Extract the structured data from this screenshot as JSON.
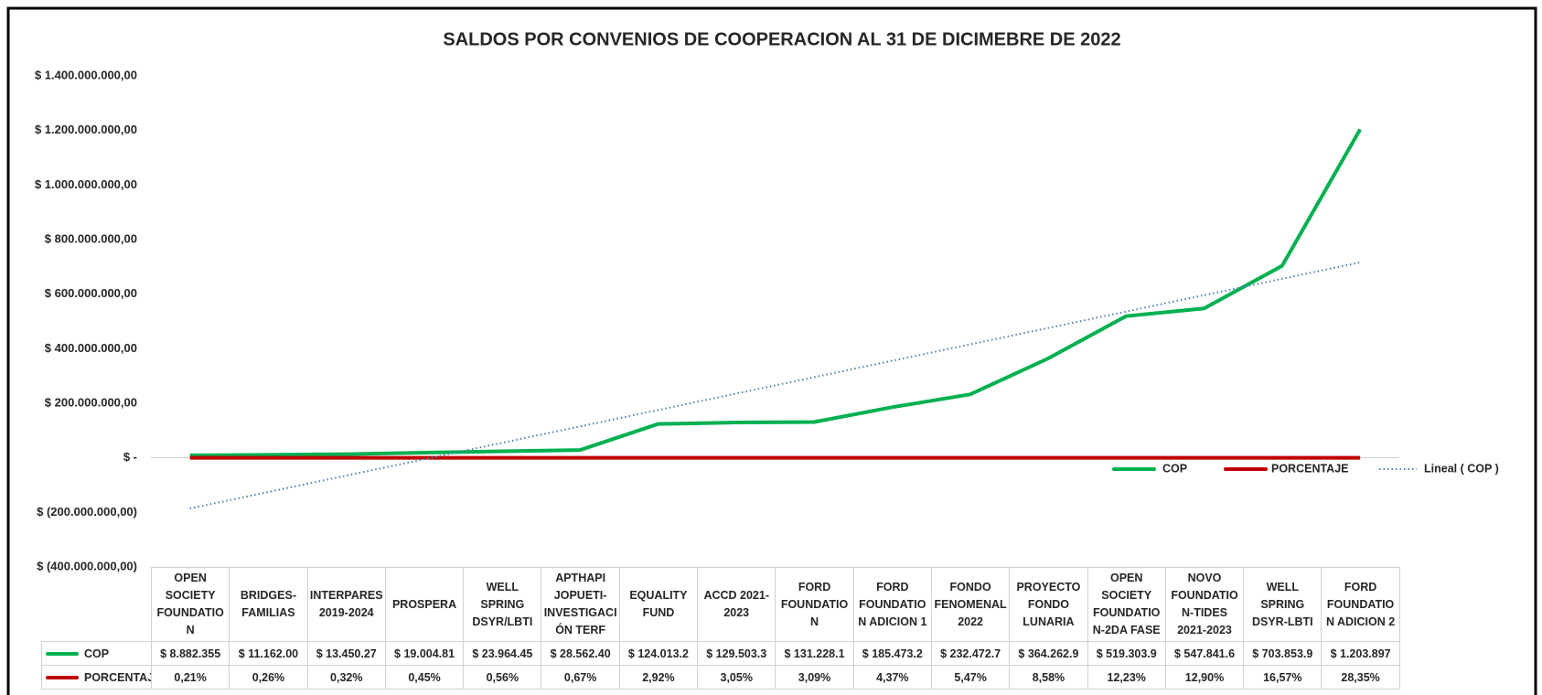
{
  "chart_data": {
    "type": "line",
    "title": "SALDOS POR CONVENIOS DE COOPERACION AL 31 DE DICIMEBRE DE 2022",
    "categories": [
      "OPEN SOCIETY FOUNDATION",
      "BRIDGES-FAMILIAS",
      "INTERPARES 2019-2024",
      "PROSPERA",
      "WELL SPRING DSYR/LBTI",
      "APTHAPI JOPUETI-INVESTIGACIÓN TERF",
      "EQUALITY FUND",
      "ACCD 2021-2023",
      "FORD FOUNDATION",
      "FORD FOUNDATION ADICION 1",
      "FONDO FENOMENAL 2022",
      "PROYECTO FONDO LUNARIA",
      "OPEN SOCIETY FOUNDATION-2DA FASE",
      "NOVO FOUNDATION-TIDES 2021-2023",
      "WELL SPRING DSYR-LBTI",
      "FORD FOUNDATION ADICION 2"
    ],
    "series": [
      {
        "name": "COP",
        "color": "#00b050",
        "values": [
          8882355,
          11162000,
          13450270,
          19004810,
          23964450,
          28562400,
          124013200,
          129503300,
          131228100,
          185473200,
          232472700,
          364262900,
          519303900,
          547841600,
          703853900,
          1203897000
        ],
        "value_labels": [
          "$ 8.882.355",
          "$ 11.162.00",
          "$ 13.450.27",
          "$ 19.004.81",
          "$ 23.964.45",
          "$ 28.562.40",
          "$ 124.013.2",
          "$ 129.503.3",
          "$ 131.228.1",
          "$ 185.473.2",
          "$ 232.472.7",
          "$ 364.262.9",
          "$ 519.303.9",
          "$ 547.841.6",
          "$ 703.853.9",
          "$ 1.203.897"
        ]
      },
      {
        "name": "PORCENTAJE",
        "color": "#c00000",
        "values": [
          0.21,
          0.26,
          0.32,
          0.45,
          0.56,
          0.67,
          2.92,
          3.05,
          3.09,
          4.37,
          5.47,
          8.58,
          12.23,
          12.9,
          16.57,
          28.35
        ],
        "value_labels": [
          "0,21%",
          "0,26%",
          "0,32%",
          "0,45%",
          "0,56%",
          "0,67%",
          "2,92%",
          "3,05%",
          "3,09%",
          "4,37%",
          "5,47%",
          "8,58%",
          "12,23%",
          "12,90%",
          "16,57%",
          "28,35%"
        ]
      }
    ],
    "trendline": {
      "name": "Lineal ( COP )",
      "series": 0,
      "type": "linear",
      "color": "#4a7ebb"
    },
    "ylim": [
      -400000000,
      1400000000
    ],
    "yticks": [
      {
        "value": -400000000,
        "label": "$ (400.000.000,00)"
      },
      {
        "value": -200000000,
        "label": "$ (200.000.000,00)"
      },
      {
        "value": 0,
        "label": "$ -"
      },
      {
        "value": 200000000,
        "label": "$ 200.000.000,00"
      },
      {
        "value": 400000000,
        "label": "$ 400.000.000,00"
      },
      {
        "value": 600000000,
        "label": "$ 600.000.000,00"
      },
      {
        "value": 800000000,
        "label": "$ 800.000.000,00"
      },
      {
        "value": 1000000000,
        "label": "$ 1.000.000.000,00"
      },
      {
        "value": 1200000000,
        "label": "$ 1.200.000.000,00"
      },
      {
        "value": 1400000000,
        "label": "$ 1.400.000.000,00"
      }
    ],
    "grid": false,
    "legend": "bottom-right",
    "data_table": true
  }
}
